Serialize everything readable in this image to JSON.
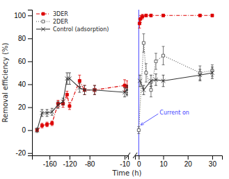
{
  "chart_data": [
    {
      "type": "line",
      "xlabel": "Time (h)",
      "ylabel": "Removal efficiency (%)",
      "xlim": [
        -195,
        -3
      ],
      "xticks": [
        -160,
        -120,
        -80,
        -10
      ],
      "ylim": [
        -22,
        105
      ],
      "yticks": [
        -20,
        0,
        20,
        40,
        60,
        80,
        100
      ],
      "legend": "upper left",
      "series": [
        {
          "name": "3DER",
          "color": "#dd0000",
          "marker": "square",
          "line_style": "dashdot",
          "x": [
            -185,
            -175,
            -165,
            -155,
            -143,
            -133,
            -125,
            -120,
            -100,
            -90,
            -70,
            -10,
            -5
          ],
          "values": [
            0,
            4,
            5,
            6,
            23,
            23,
            31,
            21,
            43,
            35,
            35,
            39,
            38
          ],
          "errors": [
            1,
            2,
            2,
            2,
            3,
            3,
            3,
            3,
            5,
            4,
            4,
            5,
            5
          ]
        },
        {
          "name": "2DER",
          "color": "#555555",
          "marker": "square-open",
          "line_style": "dotted",
          "x": [
            -5
          ],
          "values": [
            34
          ],
          "errors": [
            4
          ]
        },
        {
          "name": "Control (adsorption)",
          "color": "#333333",
          "marker": "x",
          "line_style": "solid",
          "x": [
            -185,
            -175,
            -165,
            -155,
            -143,
            -133,
            -125,
            -120,
            -100,
            -90,
            -70,
            -10,
            -5
          ],
          "values": [
            0,
            15,
            15,
            16,
            22,
            25,
            45,
            45,
            37,
            35,
            35,
            33,
            35
          ],
          "errors": [
            2,
            3,
            3,
            3,
            3,
            3,
            5,
            5,
            4,
            4,
            4,
            4,
            4
          ]
        }
      ]
    },
    {
      "type": "line",
      "xlim": [
        -1.5,
        34
      ],
      "xticks": [
        0,
        10,
        20,
        30
      ],
      "ylim": [
        -22,
        105
      ],
      "annotations": [
        {
          "text": "Current on",
          "x": 0,
          "color": "#4444ff"
        }
      ],
      "series": [
        {
          "name": "3DER",
          "color": "#dd0000",
          "marker": "square",
          "line_style": "dashdot",
          "x": [
            0.3,
            0.7,
            1.5,
            3,
            5,
            10,
            25,
            30
          ],
          "values": [
            93,
            97,
            99,
            100,
            100,
            100,
            100,
            100
          ],
          "errors": [
            4,
            3,
            2,
            1,
            1,
            1,
            1,
            1
          ]
        },
        {
          "name": "2DER",
          "color": "#555555",
          "marker": "square-open",
          "line_style": "dotted",
          "x": [
            0,
            2,
            3,
            5,
            7,
            10,
            25,
            30
          ],
          "values": [
            0,
            76,
            50,
            35,
            60,
            65,
            50,
            52
          ],
          "errors": [
            3,
            8,
            8,
            6,
            7,
            8,
            6,
            5
          ]
        },
        {
          "name": "Control (adsorption)",
          "color": "#333333",
          "marker": "x",
          "line_style": "solid",
          "x": [
            0.5,
            2,
            5,
            7,
            10,
            25,
            30
          ],
          "values": [
            43,
            35,
            43,
            44,
            43,
            48,
            50
          ],
          "errors": [
            5,
            4,
            5,
            5,
            5,
            5,
            5
          ]
        }
      ]
    }
  ]
}
